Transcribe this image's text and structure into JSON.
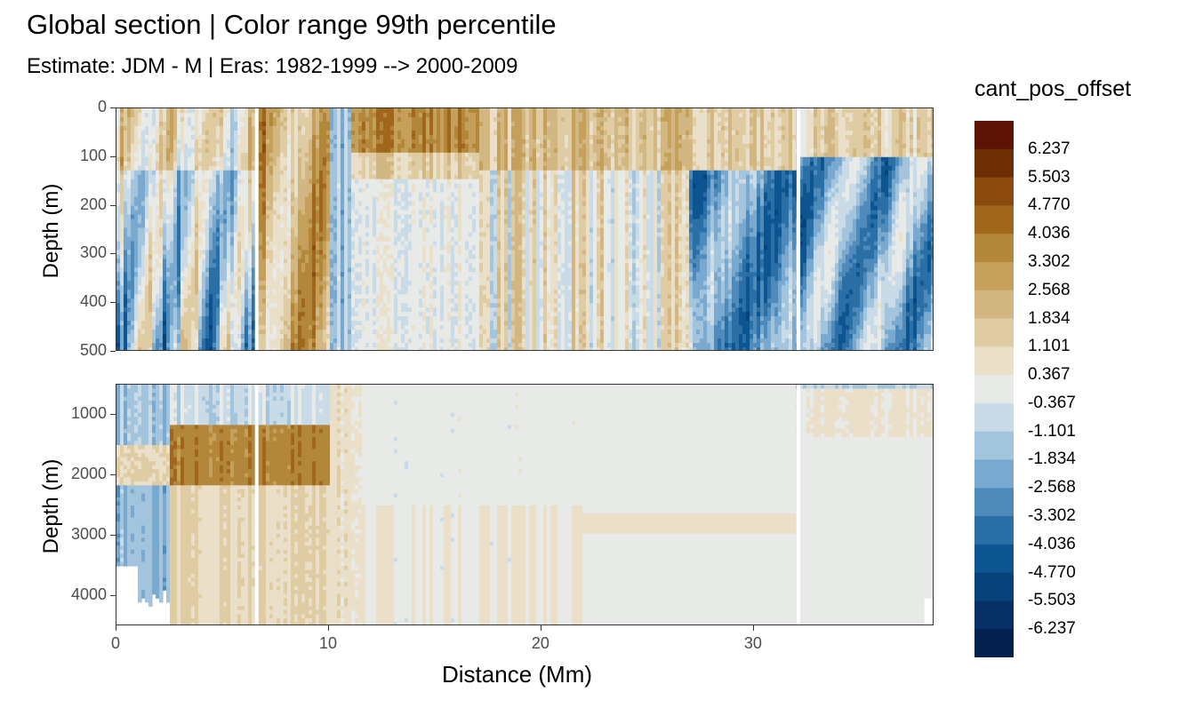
{
  "title": "Global section | Color range 99th percentile",
  "subtitle": "Estimate: JDM - M | Eras: 1982-1999 --> 2000-2009",
  "chart_data": {
    "type": "heatmap",
    "title": "Global section | Color range 99th percentile",
    "subtitle": "Estimate: JDM - M | Eras: 1982-1999 --> 2000-2009",
    "xlabel": "Distance (Mm)",
    "ylabel": "Depth (m)",
    "xlim": [
      0,
      38.5
    ],
    "panels": [
      {
        "ylabel": "Depth (m)",
        "ylim": [
          0,
          500
        ],
        "yticks": [
          "0",
          "100",
          "200",
          "300",
          "400",
          "500"
        ],
        "reversed": true
      },
      {
        "ylabel": "Depth (m)",
        "ylim": [
          500,
          4500
        ],
        "yticks": [
          "1000",
          "2000",
          "3000",
          "4000"
        ],
        "reversed": true
      }
    ],
    "xticks": [
      "0",
      "10",
      "20",
      "30"
    ],
    "legend": {
      "title": "cant_pos_offset",
      "placement": "right",
      "levels": [
        "6.237",
        "5.503",
        "4.770",
        "4.036",
        "3.302",
        "2.568",
        "1.834",
        "1.101",
        "0.367",
        "-0.367",
        "-1.101",
        "-1.834",
        "-2.568",
        "-3.302",
        "-4.036",
        "-4.770",
        "-5.503",
        "-6.237"
      ],
      "colors": [
        "#5c1505",
        "#6e2e05",
        "#8a4a0c",
        "#a0661c",
        "#b3873a",
        "#c4a05a",
        "#d2b783",
        "#e0cca3",
        "#eadfc8",
        "#e8eae7",
        "#c8dbe7",
        "#a3c4dd",
        "#7aa9cf",
        "#4e8bbb",
        "#2a6fa6",
        "#0d5590",
        "#08427b",
        "#062f66",
        "#04204f"
      ]
    },
    "gaps_x": [
      6.6,
      32.1
    ]
  }
}
